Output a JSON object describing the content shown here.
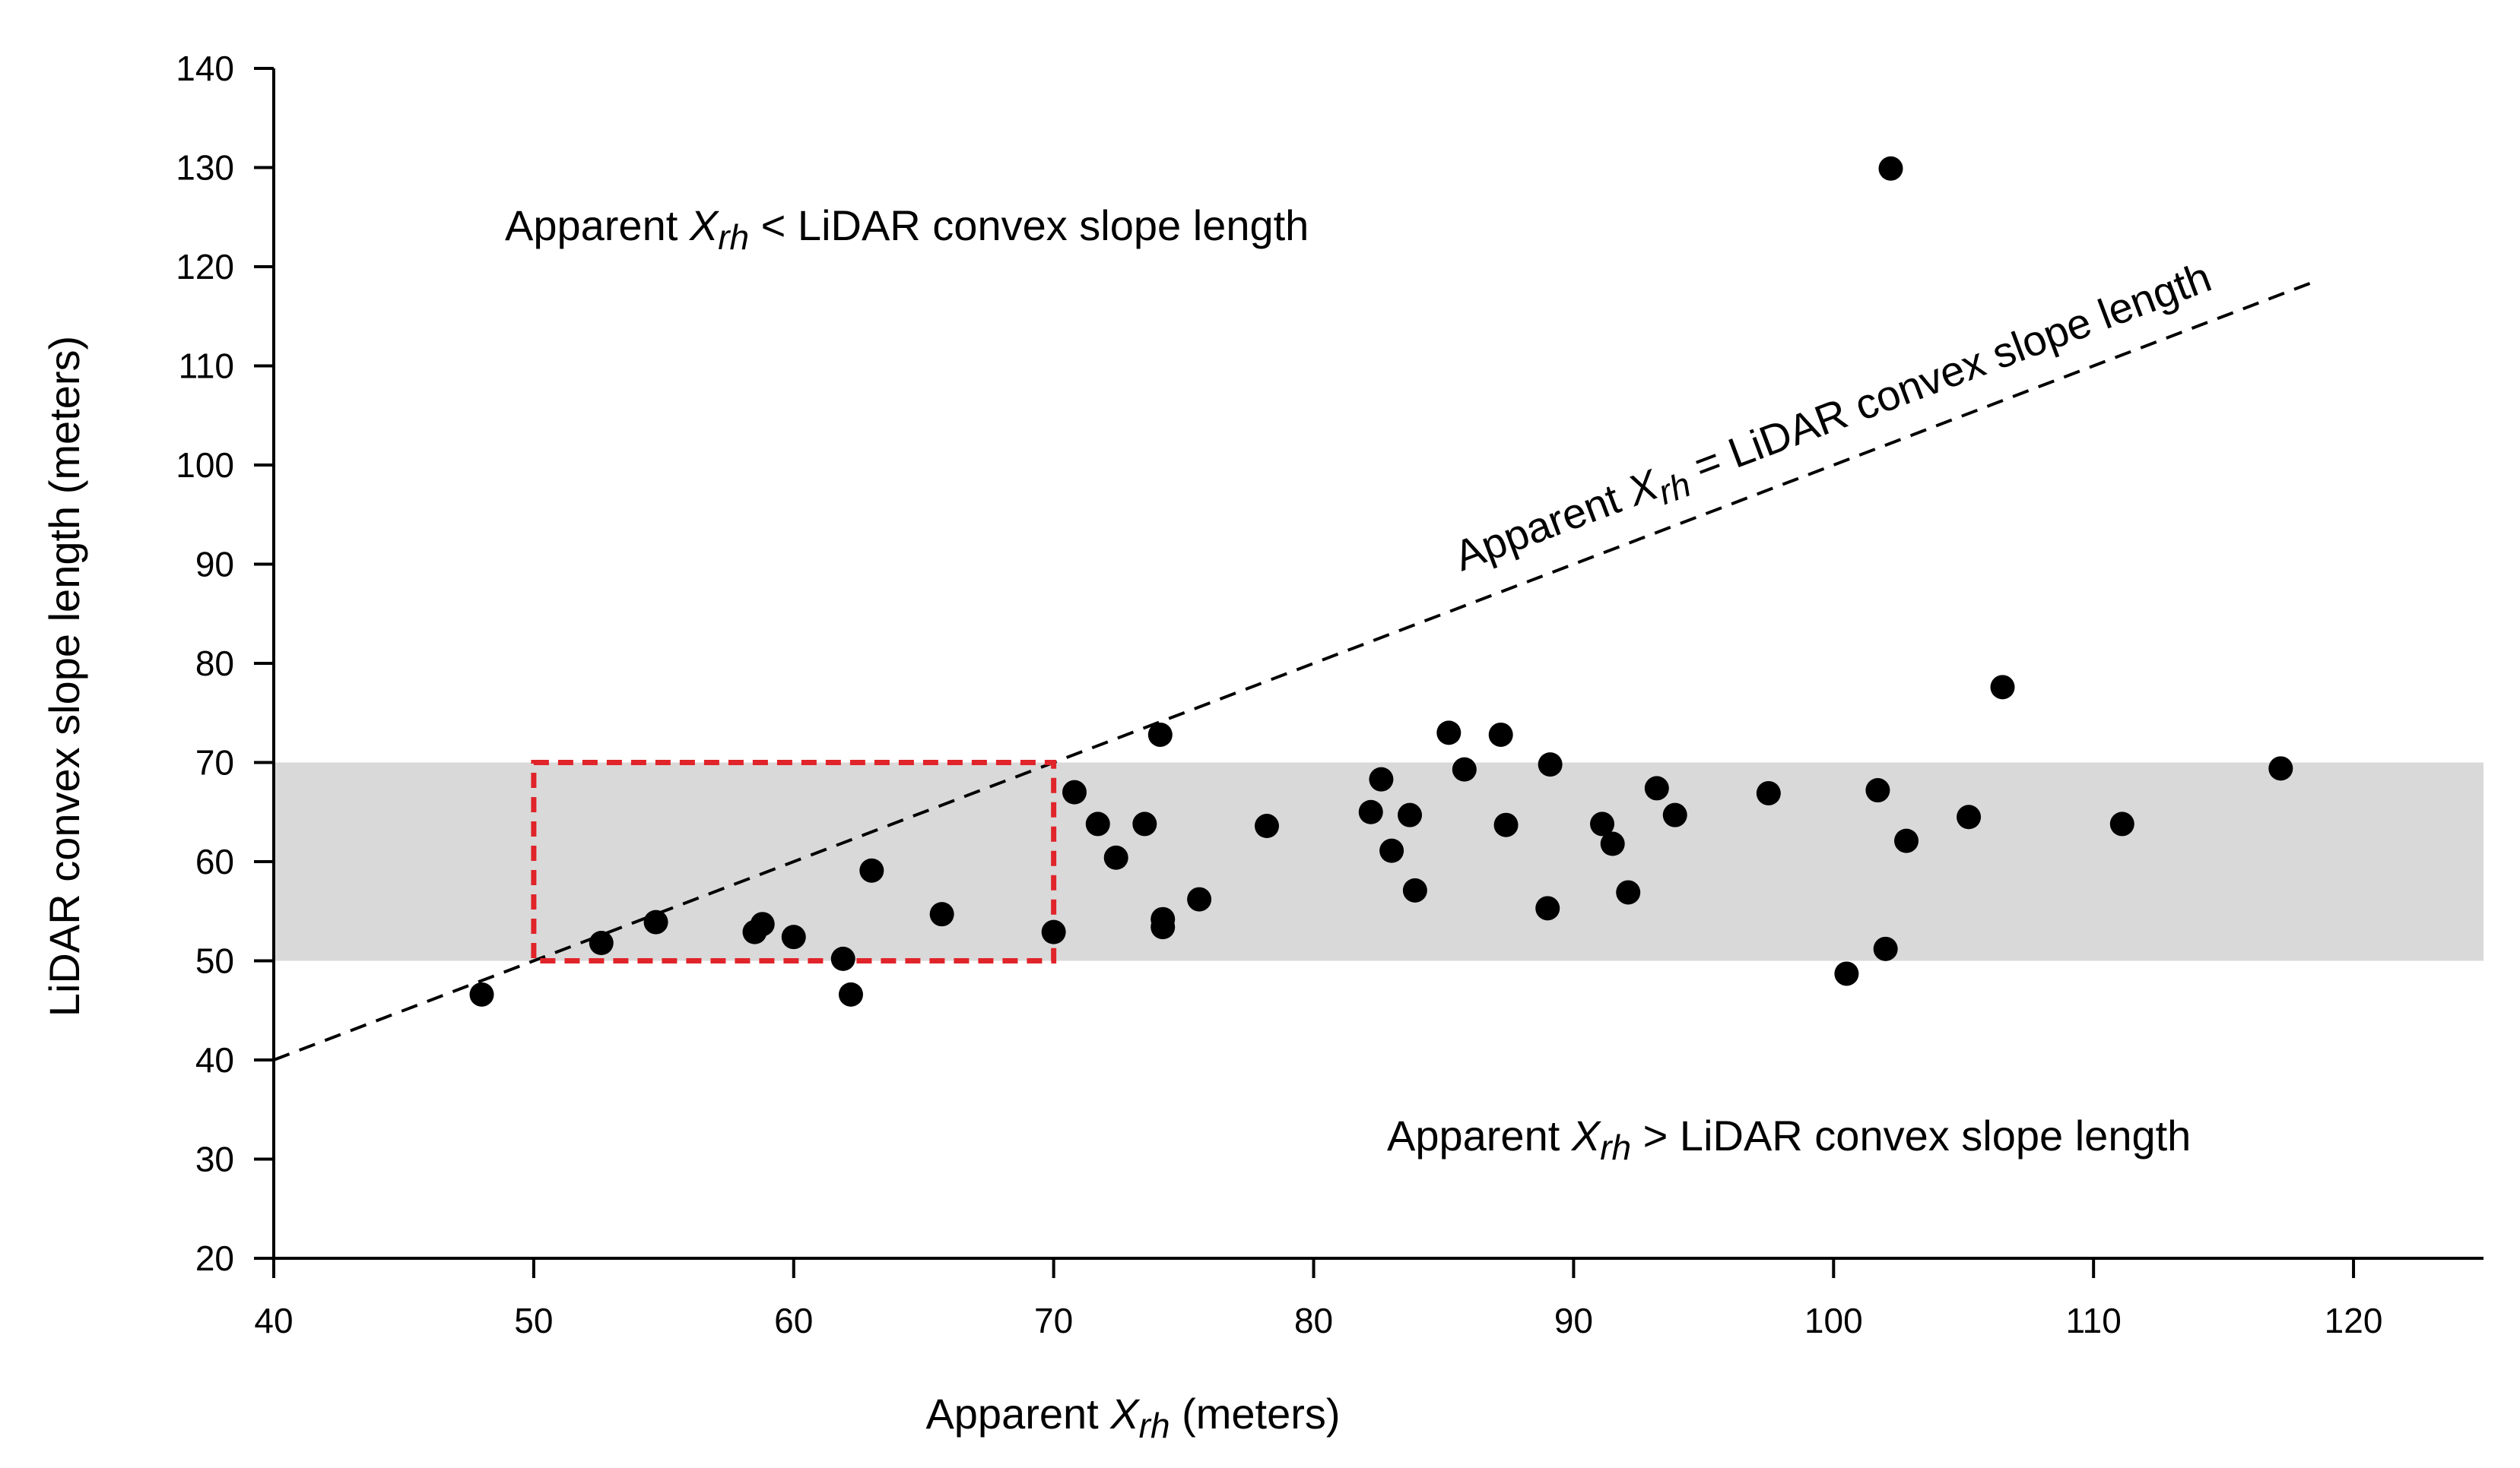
{
  "chart_data": {
    "type": "scatter",
    "xlabel": "Apparent Xrh (meters)",
    "ylabel": "LiDAR convex slope length (meters)",
    "xlim": [
      40,
      125
    ],
    "ylim": [
      20,
      140
    ],
    "xticks": [
      40,
      50,
      60,
      70,
      80,
      90,
      100,
      110,
      120
    ],
    "yticks": [
      20,
      30,
      40,
      50,
      60,
      70,
      80,
      90,
      100,
      110,
      120,
      130,
      140
    ],
    "grid": false,
    "shaded_band": {
      "y_from": 50,
      "y_to": 70,
      "color": "#d9d9d9"
    },
    "highlight_box": {
      "x_from": 50,
      "x_to": 70,
      "y_from": 50,
      "y_to": 70,
      "color": "#e0242a"
    },
    "reference_line": {
      "x_from": 40,
      "x_to": 118.5,
      "slope": 1,
      "style": "dashed"
    },
    "annotations": {
      "upper": {
        "pre": "Apparent ",
        "var": "Xrh",
        "post": " < LiDAR convex slope length"
      },
      "lower": {
        "pre": "Apparent ",
        "var": "Xrh",
        "post": " > LiDAR convex slope length"
      },
      "line": {
        "pre": "Apparent ",
        "var": "Xrh",
        "post": " = LiDAR convex slope length"
      }
    },
    "points": [
      [
        48.0,
        46.6
      ],
      [
        52.6,
        51.8
      ],
      [
        54.7,
        53.9
      ],
      [
        58.5,
        52.9
      ],
      [
        58.8,
        53.7
      ],
      [
        60.0,
        52.4
      ],
      [
        61.9,
        50.2
      ],
      [
        62.2,
        46.6
      ],
      [
        63.0,
        59.1
      ],
      [
        65.7,
        54.7
      ],
      [
        70.0,
        52.9
      ],
      [
        70.8,
        67.0
      ],
      [
        71.7,
        63.8
      ],
      [
        72.4,
        60.4
      ],
      [
        73.5,
        63.8
      ],
      [
        74.1,
        72.8
      ],
      [
        74.2,
        54.2
      ],
      [
        74.2,
        53.4
      ],
      [
        75.6,
        56.2
      ],
      [
        78.2,
        63.6
      ],
      [
        82.2,
        65.0
      ],
      [
        82.6,
        68.3
      ],
      [
        83.0,
        61.1
      ],
      [
        83.7,
        64.7
      ],
      [
        83.9,
        57.1
      ],
      [
        85.2,
        73.0
      ],
      [
        85.8,
        69.3
      ],
      [
        87.2,
        72.8
      ],
      [
        87.4,
        63.7
      ],
      [
        89.0,
        55.3
      ],
      [
        89.1,
        69.8
      ],
      [
        91.1,
        63.8
      ],
      [
        91.5,
        61.8
      ],
      [
        92.1,
        56.9
      ],
      [
        93.2,
        67.4
      ],
      [
        93.9,
        64.7
      ],
      [
        97.5,
        66.9
      ],
      [
        100.5,
        48.7
      ],
      [
        101.7,
        67.2
      ],
      [
        102.0,
        51.2
      ],
      [
        102.2,
        129.9
      ],
      [
        102.8,
        62.1
      ],
      [
        105.2,
        64.5
      ],
      [
        106.5,
        77.6
      ],
      [
        111.1,
        63.8
      ],
      [
        117.2,
        69.4
      ]
    ]
  }
}
